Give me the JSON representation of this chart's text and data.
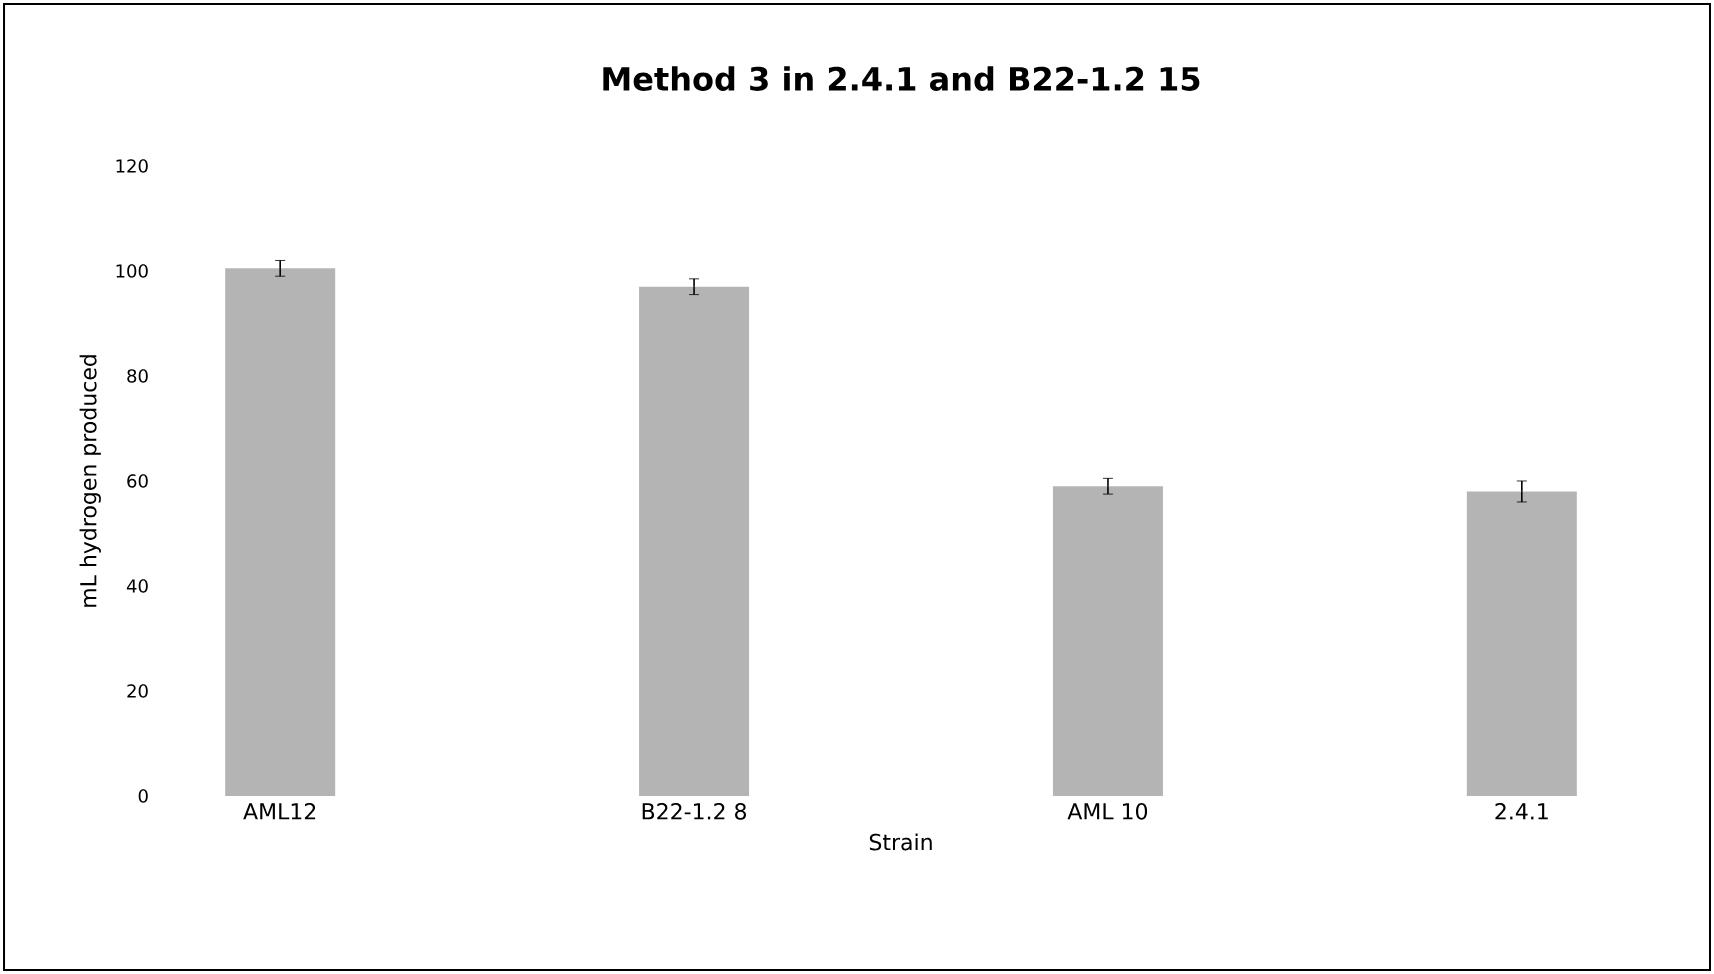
{
  "chart_data": {
    "type": "bar",
    "title": "Method 3 in 2.4.1 and B22-1.2 15",
    "xlabel": "Strain",
    "ylabel": "mL hydrogen produced",
    "categories": [
      "AML12",
      "B22-1.2 8",
      "AML 10",
      "2.4.1"
    ],
    "values": [
      100.5,
      97,
      59,
      58
    ],
    "errors": [
      1.5,
      1.5,
      1.5,
      2
    ],
    "color": "#b4b4b4",
    "ylim": [
      0,
      120
    ],
    "yticks": [
      0,
      20,
      40,
      60,
      80,
      100,
      120
    ],
    "grid": false
  }
}
